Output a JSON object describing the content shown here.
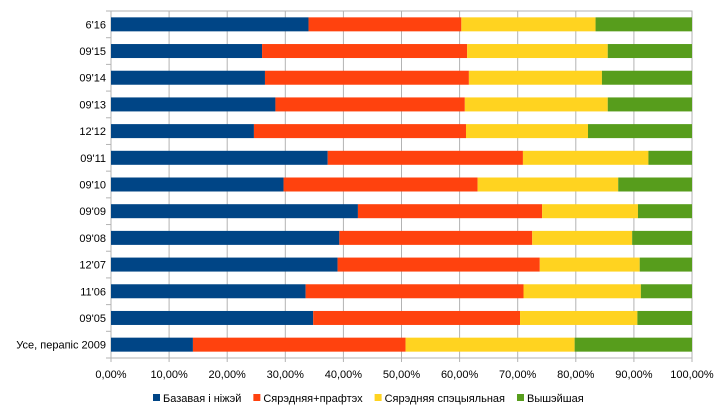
{
  "chart_data": {
    "type": "bar",
    "orientation": "horizontal",
    "stacked": "percent",
    "categories": [
      "6'16",
      "09'15",
      "09'14",
      "09'13",
      "12'12",
      "09'11",
      "09'10",
      "09'09",
      "09'08",
      "12'07",
      "11'06",
      "09'05",
      "Усе, перапіс 2009"
    ],
    "series": [
      {
        "name": "Базавая і ніжэй",
        "color": "#004586",
        "values": [
          34.0,
          26.0,
          26.5,
          28.3,
          24.6,
          37.3,
          29.7,
          42.5,
          39.3,
          39.0,
          33.5,
          34.8,
          14.1
        ]
      },
      {
        "name": "Сярэдняя+прафтэх",
        "color": "#FF420E",
        "values": [
          26.3,
          35.3,
          35.1,
          32.6,
          36.5,
          33.6,
          33.4,
          31.7,
          33.2,
          34.8,
          37.5,
          35.6,
          36.6
        ]
      },
      {
        "name": "Сярэдняя спэцыяльная",
        "color": "#FFD320",
        "values": [
          23.1,
          24.2,
          22.9,
          24.6,
          21.0,
          21.6,
          24.2,
          16.5,
          17.2,
          17.2,
          20.2,
          20.2,
          29.1
        ]
      },
      {
        "name": "Вышэйшая",
        "color": "#579D1C",
        "values": [
          16.6,
          14.5,
          15.5,
          14.5,
          17.9,
          7.5,
          12.7,
          9.3,
          10.3,
          9.0,
          8.8,
          9.4,
          20.2
        ]
      }
    ],
    "xlim": [
      0,
      100
    ],
    "x_ticks": [
      "0,00%",
      "10,00%",
      "20,00%",
      "30,00%",
      "40,00%",
      "50,00%",
      "60,00%",
      "70,00%",
      "80,00%",
      "90,00%",
      "100,00%"
    ],
    "grid": true,
    "legend": "bottom"
  }
}
